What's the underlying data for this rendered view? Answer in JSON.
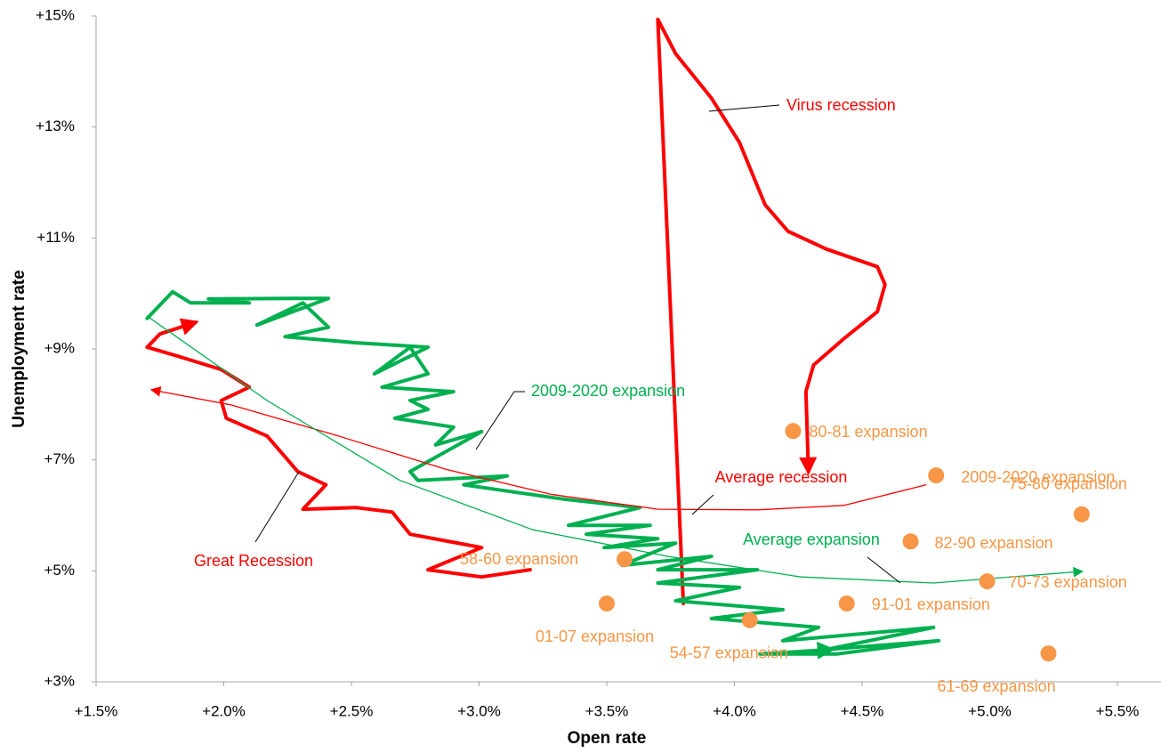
{
  "chart_data": {
    "type": "scatter",
    "x_label": "Open rate",
    "y_label": "Unemployment rate",
    "xlim": [
      1.5,
      5.5
    ],
    "ylim": [
      3,
      15
    ],
    "xticks": [
      {
        "value": 1.5,
        "label": "+1.5%"
      },
      {
        "value": 2.0,
        "label": "+2.0%"
      },
      {
        "value": 2.5,
        "label": "+2.5%"
      },
      {
        "value": 3.0,
        "label": "+3.0%"
      },
      {
        "value": 3.5,
        "label": "+3.5%"
      },
      {
        "value": 4.0,
        "label": "+4.0%"
      },
      {
        "value": 4.5,
        "label": "+4.5%"
      },
      {
        "value": 5.0,
        "label": "+5.0%"
      },
      {
        "value": 5.5,
        "label": "+5.5%"
      }
    ],
    "yticks": [
      {
        "value": 3,
        "label": "+3%"
      },
      {
        "value": 5,
        "label": "+5%"
      },
      {
        "value": 7,
        "label": "+7%"
      },
      {
        "value": 9,
        "label": "+9%"
      },
      {
        "value": 11,
        "label": "+11%"
      },
      {
        "value": 13,
        "label": "+13%"
      },
      {
        "value": 15,
        "label": "+15%"
      }
    ],
    "grid": false,
    "series": [
      {
        "name": "Virus recession",
        "color": "#ff0000",
        "width": "thick",
        "x": [
          3.8,
          3.7,
          3.77,
          3.91,
          4.02,
          4.12,
          4.21,
          4.36,
          4.56,
          4.59,
          4.56,
          4.43,
          4.31,
          4.28,
          4.29
        ],
        "values": [
          4.41,
          14.94,
          14.32,
          13.52,
          12.72,
          11.6,
          11.12,
          10.8,
          10.48,
          10.16,
          9.67,
          9.19,
          8.71,
          8.23,
          6.79
        ]
      },
      {
        "name": "Great Recession",
        "color": "#ff0000",
        "width": "thick",
        "x": [
          3.2,
          3.01,
          2.8,
          3.01,
          2.73,
          2.66,
          2.52,
          2.31,
          2.4,
          2.29,
          2.17,
          2.01,
          1.99,
          2.1,
          1.99,
          1.82,
          1.7,
          1.75,
          1.89
        ],
        "values": [
          5.02,
          4.89,
          5.02,
          5.42,
          5.66,
          6.06,
          6.14,
          6.11,
          6.55,
          6.79,
          7.43,
          7.75,
          8.07,
          8.31,
          8.63,
          8.87,
          9.03,
          9.27,
          9.48
        ]
      },
      {
        "name": "2009-2020 expansion",
        "color": "#00b050",
        "width": "thick",
        "x": [
          1.7,
          1.8,
          1.87,
          2.1,
          1.94,
          2.27,
          2.41,
          2.13,
          2.31,
          2.41,
          2.24,
          2.52,
          2.8,
          2.59,
          2.73,
          2.8,
          2.62,
          2.9,
          2.73,
          2.8,
          2.67,
          2.9,
          2.83,
          3.01,
          2.73,
          2.76,
          3.11,
          2.94,
          3.32,
          3.63,
          3.35,
          3.67,
          3.42,
          3.7,
          3.49,
          3.77,
          3.56,
          3.91,
          3.7,
          4.09,
          3.7,
          4.02,
          3.77,
          4.19,
          3.91,
          4.33,
          4.19,
          4.78,
          4.36,
          4.8,
          4.4,
          4.1,
          4.38
        ],
        "values": [
          9.55,
          10.03,
          9.83,
          9.83,
          9.9,
          9.91,
          9.91,
          9.43,
          9.83,
          9.39,
          9.22,
          9.11,
          9.03,
          8.55,
          9.03,
          8.55,
          8.31,
          8.23,
          8.07,
          7.91,
          7.75,
          7.59,
          7.27,
          7.51,
          6.79,
          6.63,
          6.71,
          6.55,
          6.3,
          6.14,
          5.82,
          5.82,
          5.66,
          5.58,
          5.42,
          5.5,
          5.1,
          5.26,
          5.02,
          5.02,
          4.78,
          4.7,
          4.46,
          4.3,
          4.14,
          3.98,
          3.74,
          3.98,
          3.58,
          3.74,
          3.5,
          3.5,
          3.58
        ]
      },
      {
        "name": "Average recession",
        "color": "#ff0000",
        "width": "thin",
        "x": [
          4.75,
          4.43,
          4.09,
          3.7,
          3.28,
          2.87,
          2.45,
          2.03,
          1.72
        ],
        "values": [
          6.55,
          6.18,
          6.1,
          6.11,
          6.38,
          6.83,
          7.43,
          7.99,
          8.26
        ]
      },
      {
        "name": "Average expansion",
        "color": "#00b050",
        "width": "thin",
        "x": [
          1.7,
          2.17,
          2.69,
          3.21,
          3.74,
          4.26,
          4.78,
          5.36
        ],
        "values": [
          9.59,
          8.07,
          6.63,
          5.74,
          5.26,
          4.89,
          4.78,
          4.99
        ]
      }
    ],
    "markers": {
      "color": "#f79646",
      "labels": [
        "80-81 expansion",
        "2009-2020 expansion",
        "75-80 expansion",
        "82-90 expansion",
        "70-73 expansion",
        "91-01 expansion",
        "58-60 expansion",
        "01-07 expansion",
        "54-57 expansion",
        "61-69 expansion"
      ],
      "x": [
        4.23,
        4.79,
        5.36,
        4.69,
        4.99,
        4.44,
        3.57,
        3.5,
        4.06,
        5.23
      ],
      "values": [
        7.52,
        6.72,
        6.02,
        5.53,
        4.81,
        4.41,
        5.21,
        4.41,
        4.11,
        3.51
      ]
    }
  }
}
